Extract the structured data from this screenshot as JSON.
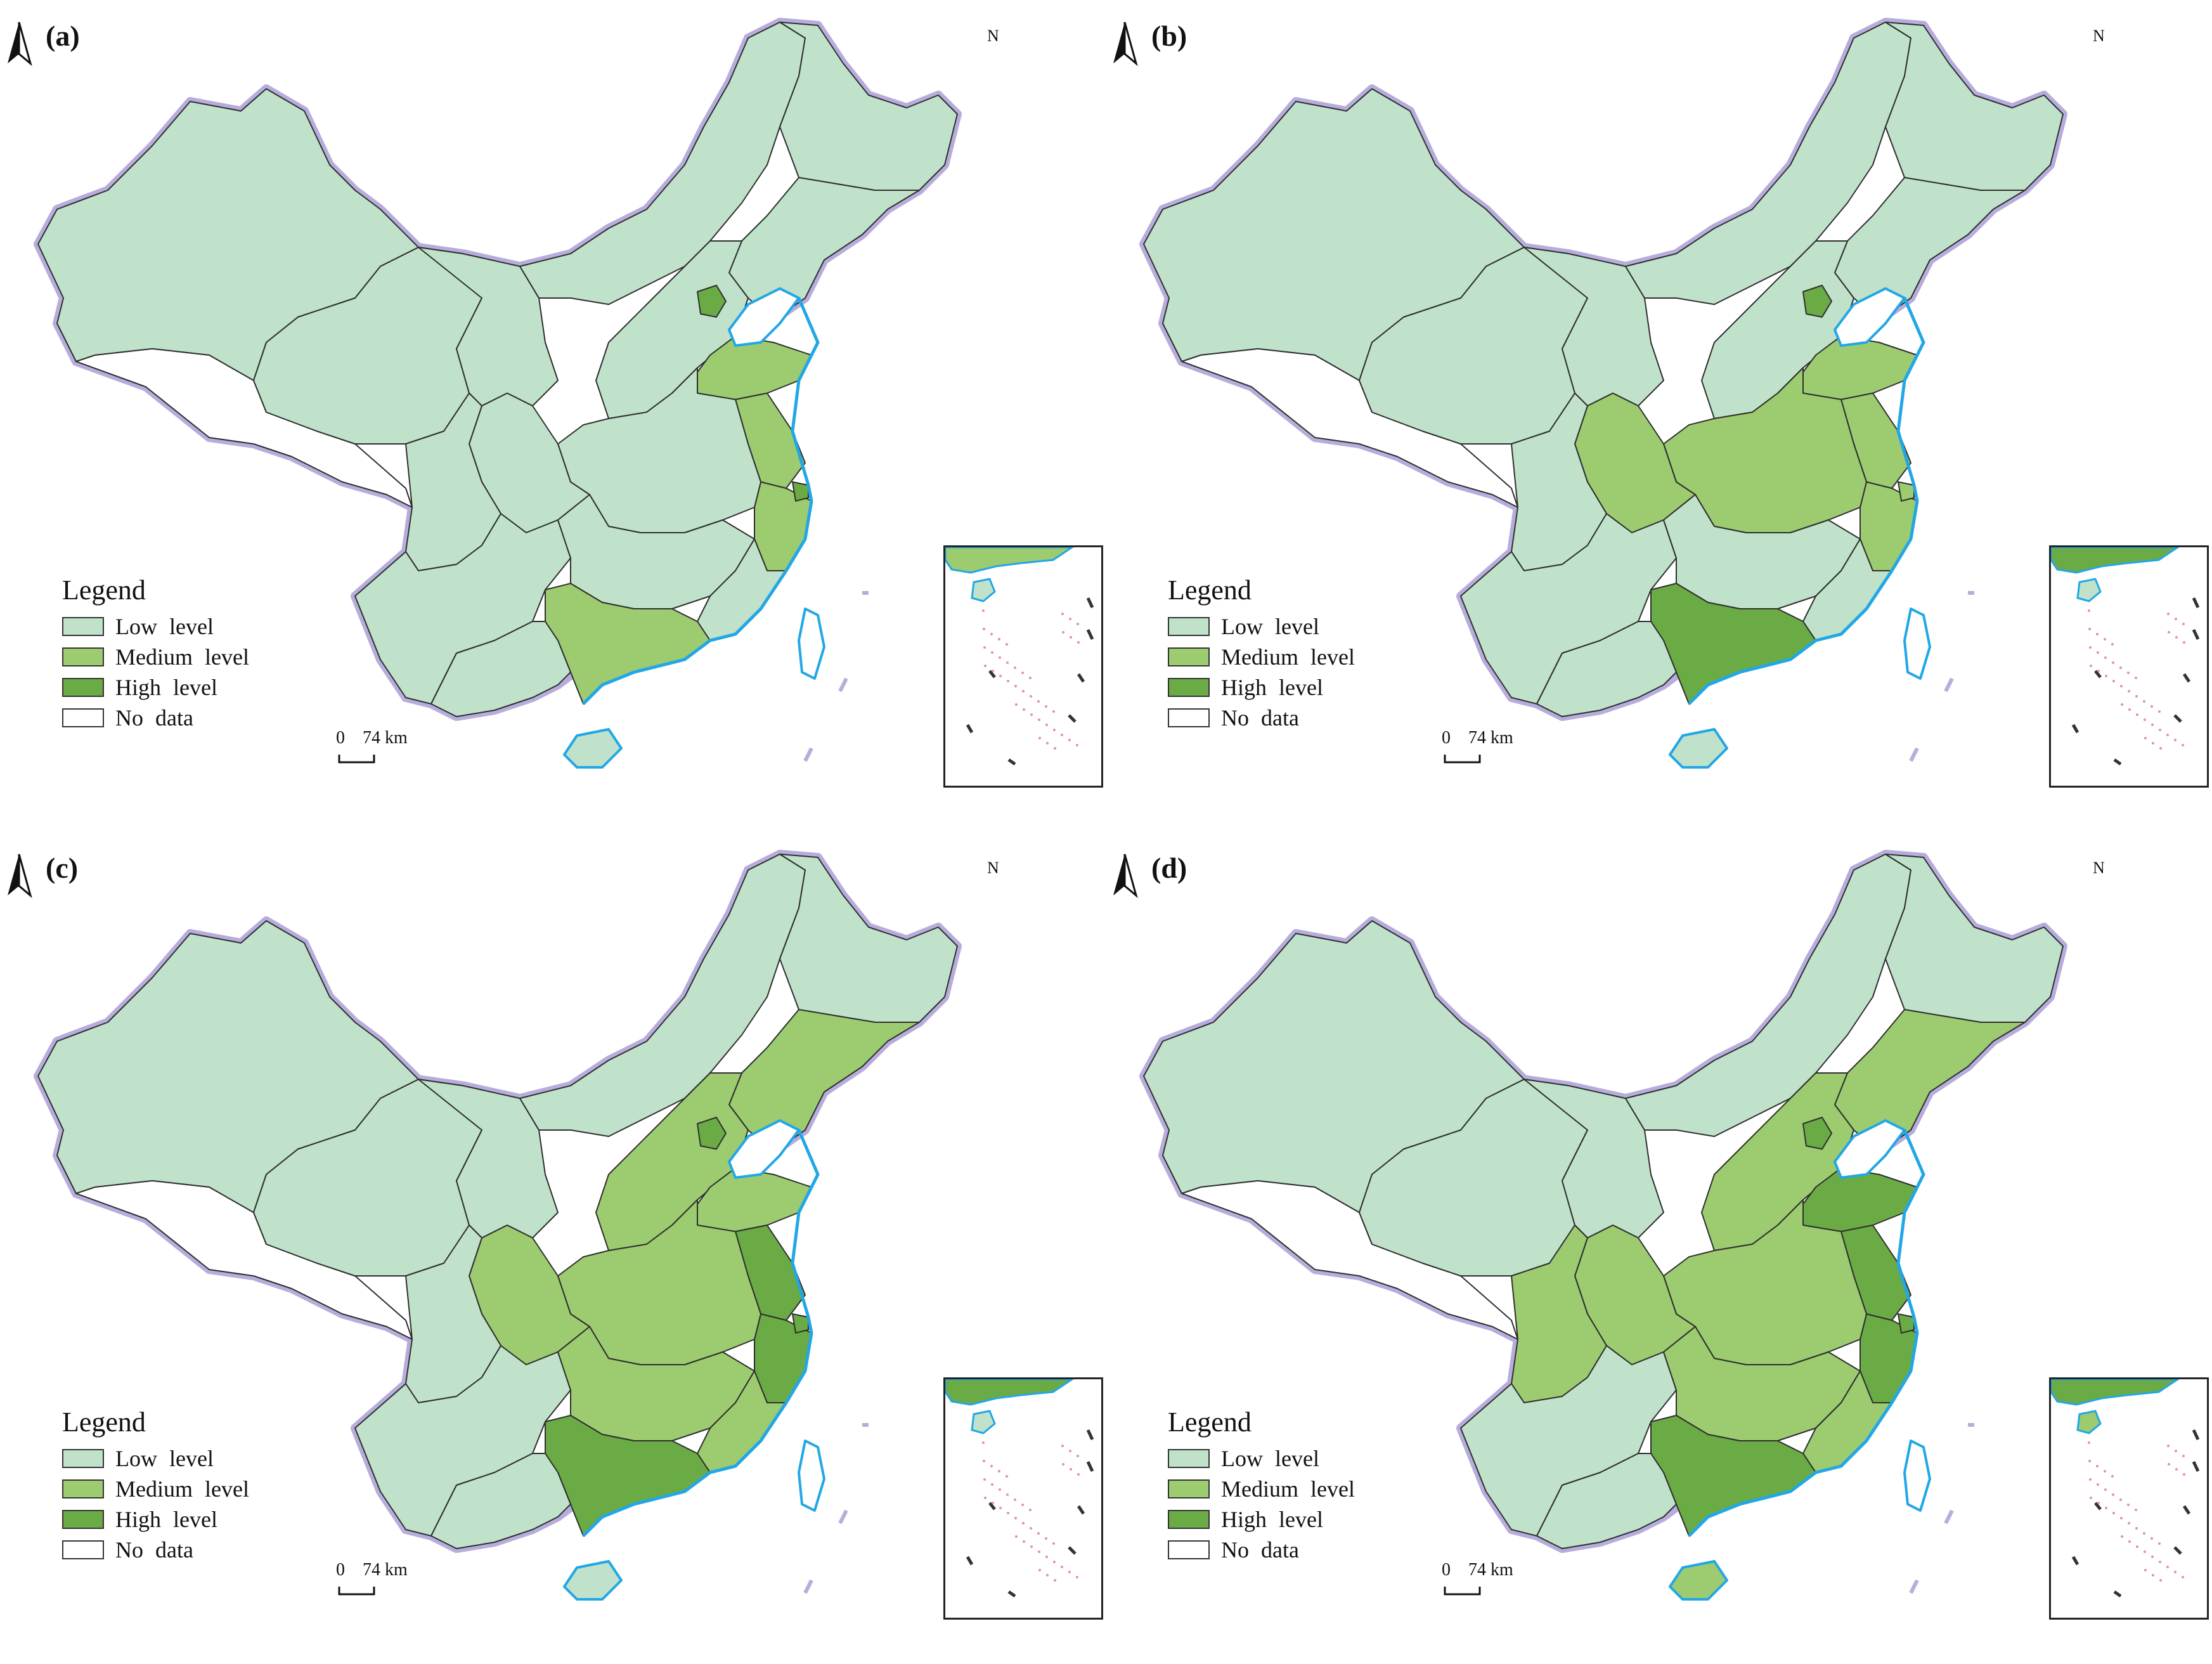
{
  "colors": {
    "low": "#c0e2cb",
    "medium": "#9ccb70",
    "high": "#6aab45",
    "no_data": "#ffffff",
    "border": "#2f2f2f",
    "boundary_glow": "#b7addc",
    "coast": "#22a7e6",
    "islands": "#e38bc0"
  },
  "legend": {
    "title": "Legend",
    "items": [
      {
        "label": "Low  level",
        "color": "#c0e2cb"
      },
      {
        "label": "Medium  level",
        "color": "#9ccb70"
      },
      {
        "label": "High  level",
        "color": "#6aab45"
      },
      {
        "label": "No data",
        "color": "#ffffff"
      }
    ]
  },
  "scale": {
    "zero": "0",
    "distance": "74 km"
  },
  "north_arrow": {
    "label": "N"
  },
  "panels": [
    {
      "label": "(a)",
      "levels": {
        "northeast": "low",
        "north_china_plain": "low",
        "beijing": "high",
        "shandong": "medium",
        "jiangsu": "medium",
        "zhejiang": "medium",
        "shanghai": "high",
        "central": "low",
        "upper_yangtze": "low",
        "sichuan": "low",
        "hunan_jiangxi": "low",
        "fujian": "low",
        "guangdong": "medium",
        "hainan": "low"
      }
    },
    {
      "label": "(b)",
      "levels": {
        "northeast": "low",
        "north_china_plain": "low",
        "beijing": "high",
        "shandong": "medium",
        "jiangsu": "medium",
        "zhejiang": "medium",
        "shanghai": "medium",
        "central": "medium",
        "upper_yangtze": "medium",
        "sichuan": "low",
        "hunan_jiangxi": "low",
        "fujian": "low",
        "guangdong": "high",
        "hainan": "low"
      }
    },
    {
      "label": "(c)",
      "levels": {
        "northeast": "medium",
        "north_china_plain": "medium",
        "beijing": "high",
        "shandong": "medium",
        "jiangsu": "high",
        "zhejiang": "high",
        "shanghai": "high",
        "central": "medium",
        "upper_yangtze": "medium",
        "sichuan": "low",
        "hunan_jiangxi": "medium",
        "fujian": "medium",
        "guangdong": "high",
        "hainan": "low"
      }
    },
    {
      "label": "(d)",
      "levels": {
        "northeast": "medium",
        "north_china_plain": "medium",
        "beijing": "high",
        "shandong": "high",
        "jiangsu": "high",
        "zhejiang": "high",
        "shanghai": "high",
        "central": "medium",
        "upper_yangtze": "medium",
        "sichuan": "medium",
        "hunan_jiangxi": "medium",
        "fujian": "medium",
        "guangdong": "high",
        "hainan": "medium"
      }
    }
  ]
}
